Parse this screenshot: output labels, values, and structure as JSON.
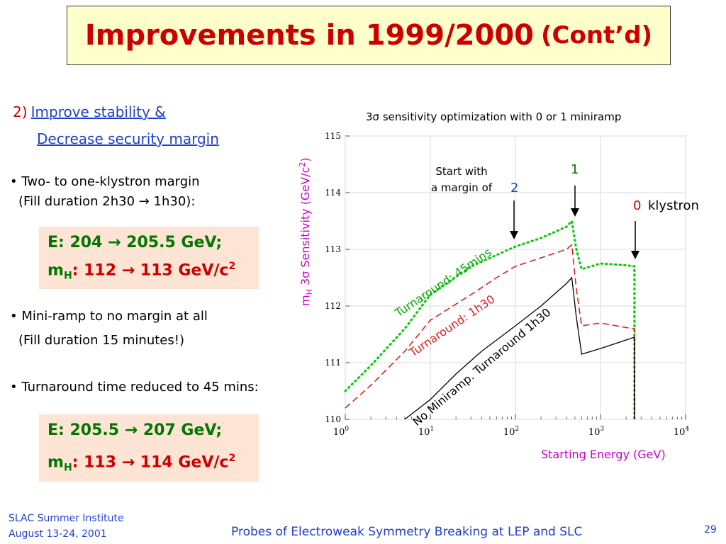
{
  "title": {
    "main": "Improvements in 1999/2000",
    "contd": "(Cont’d)"
  },
  "section": {
    "number": "2)",
    "link_line1": "Improve stability &",
    "link_line2": "Decrease security margin"
  },
  "bullets": [
    {
      "line1": "• Two- to one-klystron margin",
      "line2": "(Fill duration 2h30 → 1h30):"
    },
    {
      "line1": "• Mini-ramp to no margin at all",
      "line2": "(Fill duration 15 minutes!)"
    },
    {
      "line1": "• Turnaround time reduced to 45 mins:"
    }
  ],
  "box1": {
    "e_prefix": "E: 204 → ",
    "e_value": "205.5 GeV;",
    "m_prefix": "m",
    "m_sub": "H",
    "m_mid": ": 112 → ",
    "m_value": "113 GeV/c",
    "m_sup": "2"
  },
  "box2": {
    "e_prefix": "E: 205.5 → ",
    "e_value": "207 GeV;",
    "m_prefix": "m",
    "m_sub": "H",
    "m_mid": ": 113 → ",
    "m_value": "114 GeV/c",
    "m_sup": "2"
  },
  "footer": {
    "left1": "SLAC Summer Institute",
    "left2": "August 13-24, 2001",
    "center": "Probes of Electroweak Symmetry Breaking at LEP and SLC",
    "page": "29"
  },
  "colors": {
    "title": "#cc0000",
    "link": "#1f3fd0",
    "green": "#007700",
    "box_bg": "#fde4d4",
    "title_bg": "#ffffcc",
    "ylabel": "#cc00cc",
    "series_green": "#00cc00",
    "series_red": "#dd2222",
    "series_black": "#000000"
  },
  "chart_data": {
    "type": "line",
    "title": "3σ sensitivity optimization with 0 or 1 miniramp",
    "xlabel": "Starting Energy (GeV)",
    "ylabel": "mH 3σ Sensitivity (GeV/c2)",
    "x_scale": "log",
    "xlim": [
      1,
      10000
    ],
    "ylim": [
      110,
      115
    ],
    "x_ticks": [
      1,
      10,
      100,
      1000,
      10000
    ],
    "x_tick_labels": [
      {
        "base": "10",
        "exp": "0"
      },
      {
        "base": "10",
        "exp": "1"
      },
      {
        "base": "10",
        "exp": "2"
      },
      {
        "base": "10",
        "exp": "3"
      },
      {
        "base": "10",
        "exp": "4"
      }
    ],
    "y_ticks": [
      110,
      111,
      112,
      113,
      114,
      115
    ],
    "grid": true,
    "series": [
      {
        "name": "Turnaround: 45mins",
        "style": "dotted",
        "color": "#00cc00",
        "x": [
          1,
          2,
          5,
          10,
          30,
          60,
          100,
          200,
          400,
          460,
          520,
          600,
          1000,
          2000,
          2500,
          2500
        ],
        "y": [
          110.5,
          110.95,
          111.6,
          112.2,
          112.7,
          112.9,
          113.05,
          113.2,
          113.4,
          113.5,
          113.0,
          112.65,
          112.75,
          112.72,
          112.7,
          110.0
        ]
      },
      {
        "name": "Turnaround: 1h30",
        "style": "dashed",
        "color": "#dd2222",
        "x": [
          1,
          2,
          5,
          10,
          30,
          60,
          100,
          200,
          400,
          460,
          520,
          600,
          1000,
          2000,
          2500,
          2500
        ],
        "y": [
          110.2,
          110.6,
          111.2,
          111.75,
          112.2,
          112.5,
          112.7,
          112.85,
          113.0,
          113.08,
          112.3,
          111.65,
          111.7,
          111.62,
          111.6,
          110.0
        ]
      },
      {
        "name": "No Miniramp. Turnaround 1h30",
        "style": "solid",
        "color": "#000000",
        "x": [
          5,
          10,
          20,
          40,
          60,
          100,
          200,
          400,
          460,
          520,
          600,
          1000,
          2000,
          2500,
          2500
        ],
        "y": [
          110.0,
          110.35,
          110.8,
          111.2,
          111.4,
          111.65,
          112.0,
          112.4,
          112.5,
          111.8,
          111.15,
          111.25,
          111.4,
          111.45,
          110.0
        ]
      }
    ],
    "annotations": [
      {
        "text_line1": "Start with",
        "text_line2": "a margin of",
        "value": "2"
      },
      {
        "text": "1"
      },
      {
        "value": "0",
        "text": "klystron"
      }
    ]
  }
}
